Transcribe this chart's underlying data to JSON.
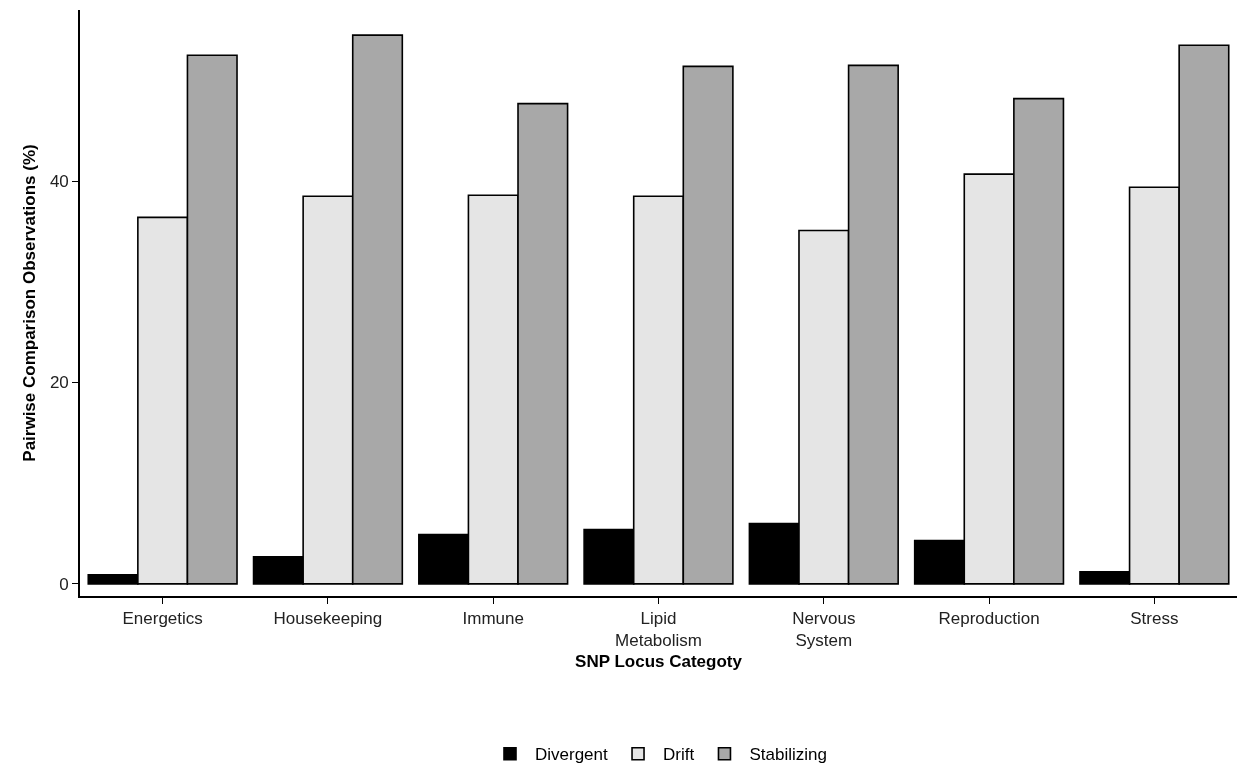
{
  "chart_data": {
    "type": "bar",
    "xlabel": "SNP Locus Categoty",
    "ylabel": "Pairwise Comparison Observations (%)",
    "categories": [
      "Energetics",
      "Housekeeping",
      "Immune",
      "Lipid\nMetabolism",
      "Nervous\nSystem",
      "Reproduction",
      "Stress"
    ],
    "series": [
      {
        "name": "Divergent",
        "color": "#000000",
        "values": [
          0.9,
          2.7,
          4.9,
          5.4,
          6.0,
          4.3,
          1.2
        ]
      },
      {
        "name": "Drift",
        "color": "#e5e5e5",
        "values": [
          36.4,
          38.5,
          38.6,
          38.5,
          35.1,
          40.7,
          39.4
        ]
      },
      {
        "name": "Stabilizing",
        "color": "#a8a8a8",
        "values": [
          52.5,
          54.5,
          47.7,
          51.4,
          51.5,
          48.2,
          53.5
        ]
      }
    ],
    "ylim": [
      -1.2,
      57
    ],
    "yticks": [
      0,
      20,
      40
    ],
    "grid": false,
    "legend": "bottom"
  }
}
